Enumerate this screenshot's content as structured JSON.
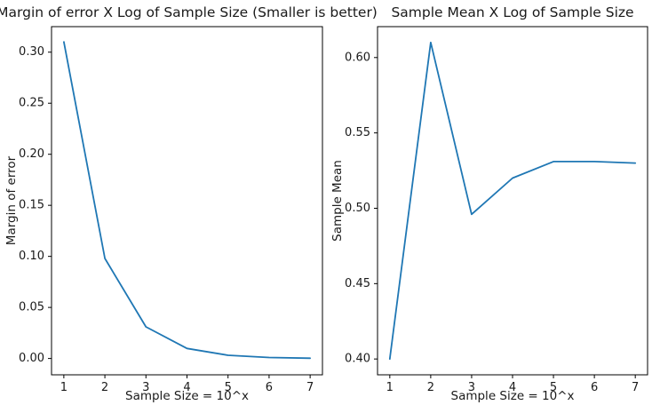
{
  "figure": {
    "background_color": "#ffffff",
    "line_color": "#1f77b4",
    "spine_color": "#000000",
    "text_color": "#1a1a1a"
  },
  "chart_data": [
    {
      "type": "line",
      "title": "Margin of error X Log of Sample Size (Smaller is better)",
      "xlabel": "Sample Size = 10^x",
      "ylabel": "Margin of error",
      "x": [
        1,
        2,
        3,
        4,
        5,
        6,
        7
      ],
      "y": [
        0.31,
        0.098,
        0.031,
        0.0098,
        0.0031,
        0.001,
        0.0003
      ],
      "xticks": [
        1,
        2,
        3,
        4,
        5,
        6,
        7
      ],
      "xtick_labels": [
        "1",
        "2",
        "3",
        "4",
        "5",
        "6",
        "7"
      ],
      "yticks": [
        0.0,
        0.05,
        0.1,
        0.15,
        0.2,
        0.25,
        0.3
      ],
      "ytick_labels": [
        "0.00",
        "0.05",
        "0.10",
        "0.15",
        "0.20",
        "0.25",
        "0.30"
      ],
      "xlim": [
        0.7,
        7.3
      ],
      "ylim": [
        -0.016,
        0.325
      ],
      "grid": false,
      "legend": null,
      "line_color": "#1f77b4"
    },
    {
      "type": "line",
      "title": "Sample Mean X Log of Sample Size",
      "xlabel": "Sample Size = 10^x",
      "ylabel": "Sample Mean",
      "x": [
        1,
        2,
        3,
        4,
        5,
        6,
        7
      ],
      "y": [
        0.4,
        0.61,
        0.496,
        0.52,
        0.531,
        0.531,
        0.53
      ],
      "xticks": [
        1,
        2,
        3,
        4,
        5,
        6,
        7
      ],
      "xtick_labels": [
        "1",
        "2",
        "3",
        "4",
        "5",
        "6",
        "7"
      ],
      "yticks": [
        0.4,
        0.45,
        0.5,
        0.55,
        0.6
      ],
      "ytick_labels": [
        "0.40",
        "0.45",
        "0.50",
        "0.55",
        "0.60"
      ],
      "xlim": [
        0.7,
        7.3
      ],
      "ylim": [
        0.3895,
        0.6205
      ],
      "grid": false,
      "legend": null,
      "line_color": "#1f77b4"
    }
  ]
}
